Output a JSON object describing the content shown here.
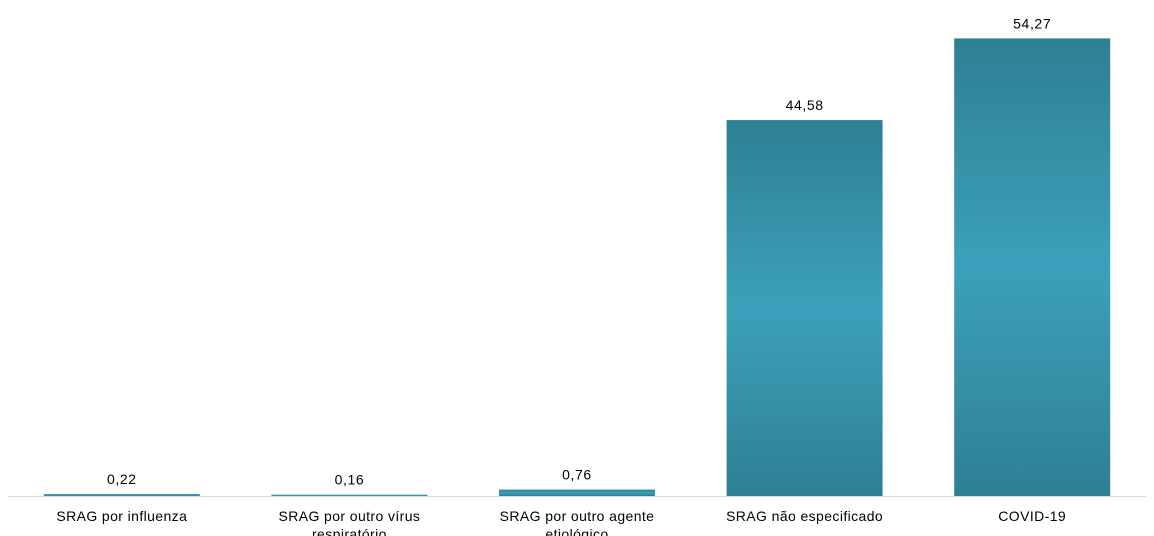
{
  "chart_data": {
    "type": "bar",
    "title": "",
    "xlabel": "",
    "ylabel": "",
    "ylim": [
      0,
      55.5
    ],
    "grid": false,
    "legend": "none",
    "categories": [
      "SRAG por influenza",
      "SRAG por outro vírus respiratório",
      "SRAG por outro agente etiológico",
      "SRAG não especificado",
      "COVID-19"
    ],
    "category_lines": [
      [
        "SRAG por influenza"
      ],
      [
        "SRAG por outro vírus",
        "respiratório"
      ],
      [
        "SRAG por outro agente",
        "etiológico"
      ],
      [
        "SRAG não especificado"
      ],
      [
        "COVID-19"
      ]
    ],
    "values": [
      0.22,
      0.16,
      0.76,
      44.58,
      54.27
    ],
    "value_labels": [
      "0,22",
      "0,16",
      "0,76",
      "44,58",
      "54,27"
    ],
    "colors": {
      "bar_edge": "#2e7f94",
      "bar_center": "#3ba1ba",
      "axis": "#d9d9d9"
    }
  }
}
